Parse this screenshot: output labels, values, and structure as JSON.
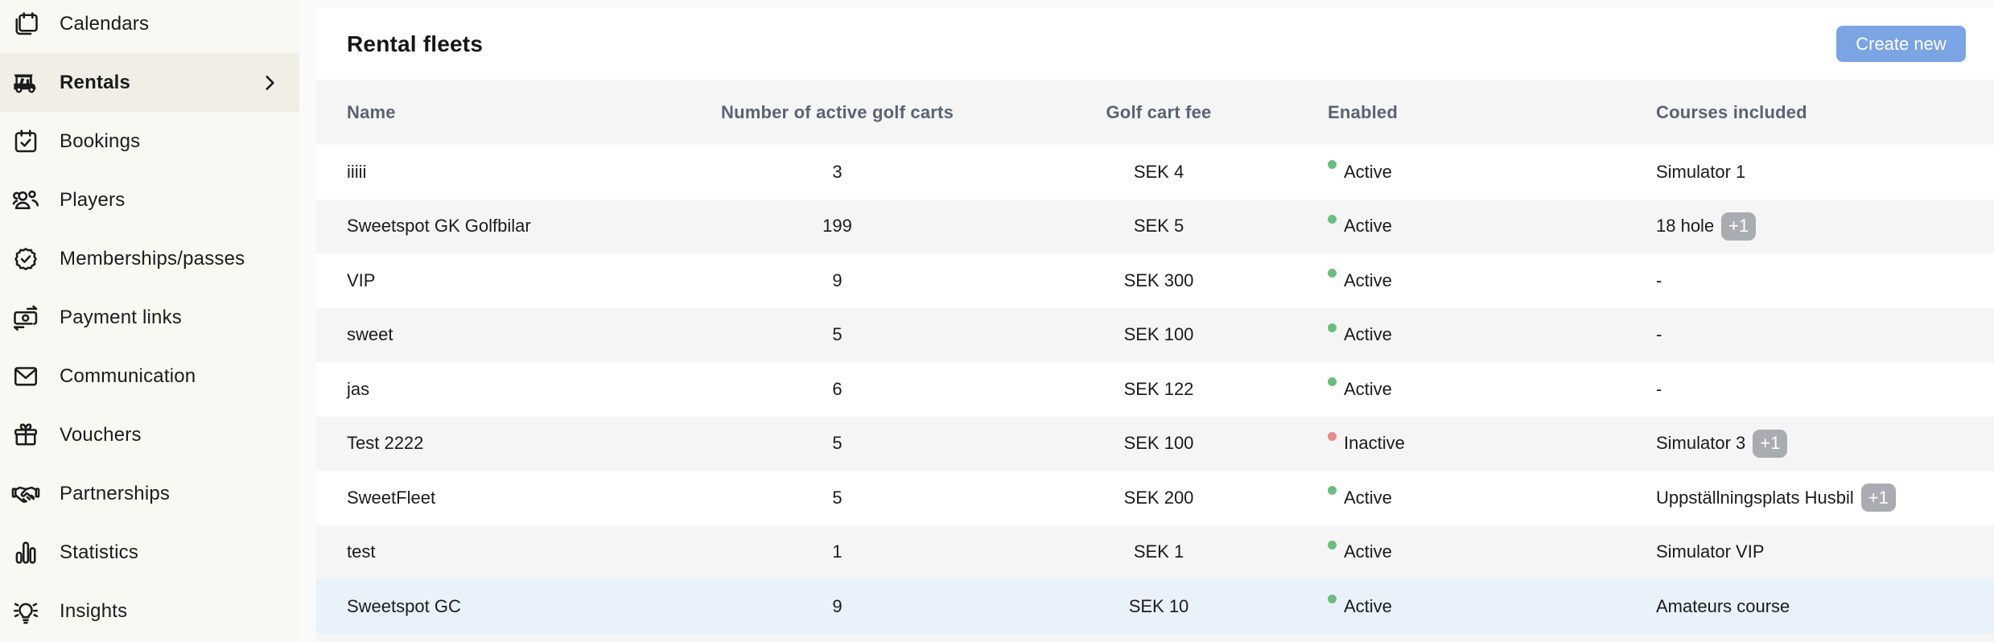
{
  "sidebar": {
    "items": [
      {
        "label": "Calendars",
        "icon": "calendars-icon",
        "active": false,
        "chevron": false
      },
      {
        "label": "Rentals",
        "icon": "golf-cart-icon",
        "active": true,
        "chevron": true
      },
      {
        "label": "Bookings",
        "icon": "calendar-check-icon",
        "active": false,
        "chevron": false
      },
      {
        "label": "Players",
        "icon": "players-icon",
        "active": false,
        "chevron": false
      },
      {
        "label": "Memberships/passes",
        "icon": "badge-check-icon",
        "active": false,
        "chevron": false
      },
      {
        "label": "Payment links",
        "icon": "payment-links-icon",
        "active": false,
        "chevron": false
      },
      {
        "label": "Communication",
        "icon": "envelope-icon",
        "active": false,
        "chevron": false
      },
      {
        "label": "Vouchers",
        "icon": "gift-icon",
        "active": false,
        "chevron": false
      },
      {
        "label": "Partnerships",
        "icon": "handshake-icon",
        "active": false,
        "chevron": false
      },
      {
        "label": "Statistics",
        "icon": "bar-chart-icon",
        "active": false,
        "chevron": false
      },
      {
        "label": "Insights",
        "icon": "lightbulb-icon",
        "active": false,
        "chevron": false
      }
    ]
  },
  "header": {
    "title": "Rental fleets",
    "create_button_label": "Create new"
  },
  "table": {
    "columns": [
      "Name",
      "Number of active golf carts",
      "Golf cart fee",
      "Enabled",
      "Courses included"
    ],
    "rows": [
      {
        "name": "iiiii",
        "active_carts": "3",
        "fee": "SEK 4",
        "status": "Active",
        "enabled": true,
        "courses": "Simulator 1",
        "extra_badge": null,
        "highlighted": false
      },
      {
        "name": "Sweetspot GK Golfbilar",
        "active_carts": "199",
        "fee": "SEK 5",
        "status": "Active",
        "enabled": true,
        "courses": "18 hole",
        "extra_badge": "+1",
        "highlighted": false
      },
      {
        "name": "VIP",
        "active_carts": "9",
        "fee": "SEK 300",
        "status": "Active",
        "enabled": true,
        "courses": "-",
        "extra_badge": null,
        "highlighted": false
      },
      {
        "name": "sweet",
        "active_carts": "5",
        "fee": "SEK 100",
        "status": "Active",
        "enabled": true,
        "courses": "-",
        "extra_badge": null,
        "highlighted": false
      },
      {
        "name": "jas",
        "active_carts": "6",
        "fee": "SEK 122",
        "status": "Active",
        "enabled": true,
        "courses": "-",
        "extra_badge": null,
        "highlighted": false
      },
      {
        "name": "Test 2222",
        "active_carts": "5",
        "fee": "SEK 100",
        "status": "Inactive",
        "enabled": false,
        "courses": "Simulator 3",
        "extra_badge": "+1",
        "highlighted": false
      },
      {
        "name": "SweetFleet",
        "active_carts": "5",
        "fee": "SEK 200",
        "status": "Active",
        "enabled": true,
        "courses": "Uppställningsplats Husbil",
        "extra_badge": "+1",
        "highlighted": false
      },
      {
        "name": "test",
        "active_carts": "1",
        "fee": "SEK 1",
        "status": "Active",
        "enabled": true,
        "courses": "Simulator VIP",
        "extra_badge": null,
        "highlighted": false
      },
      {
        "name": "Sweetspot GC",
        "active_carts": "9",
        "fee": "SEK 10",
        "status": "Active",
        "enabled": true,
        "courses": "Amateurs course",
        "extra_badge": null,
        "highlighted": true
      }
    ]
  },
  "colors": {
    "accent": "#7ba4e5",
    "active_dot": "#6dbd80",
    "inactive_dot": "#ea8a8a",
    "badge_bg": "#a9acb1",
    "highlight": "#e9f1fb",
    "stripe": "#f5f5f5",
    "sidebar_bg": "#faf8f2",
    "sidebar_active_bg": "#f1eee6",
    "page_bg": "#fafafa"
  }
}
